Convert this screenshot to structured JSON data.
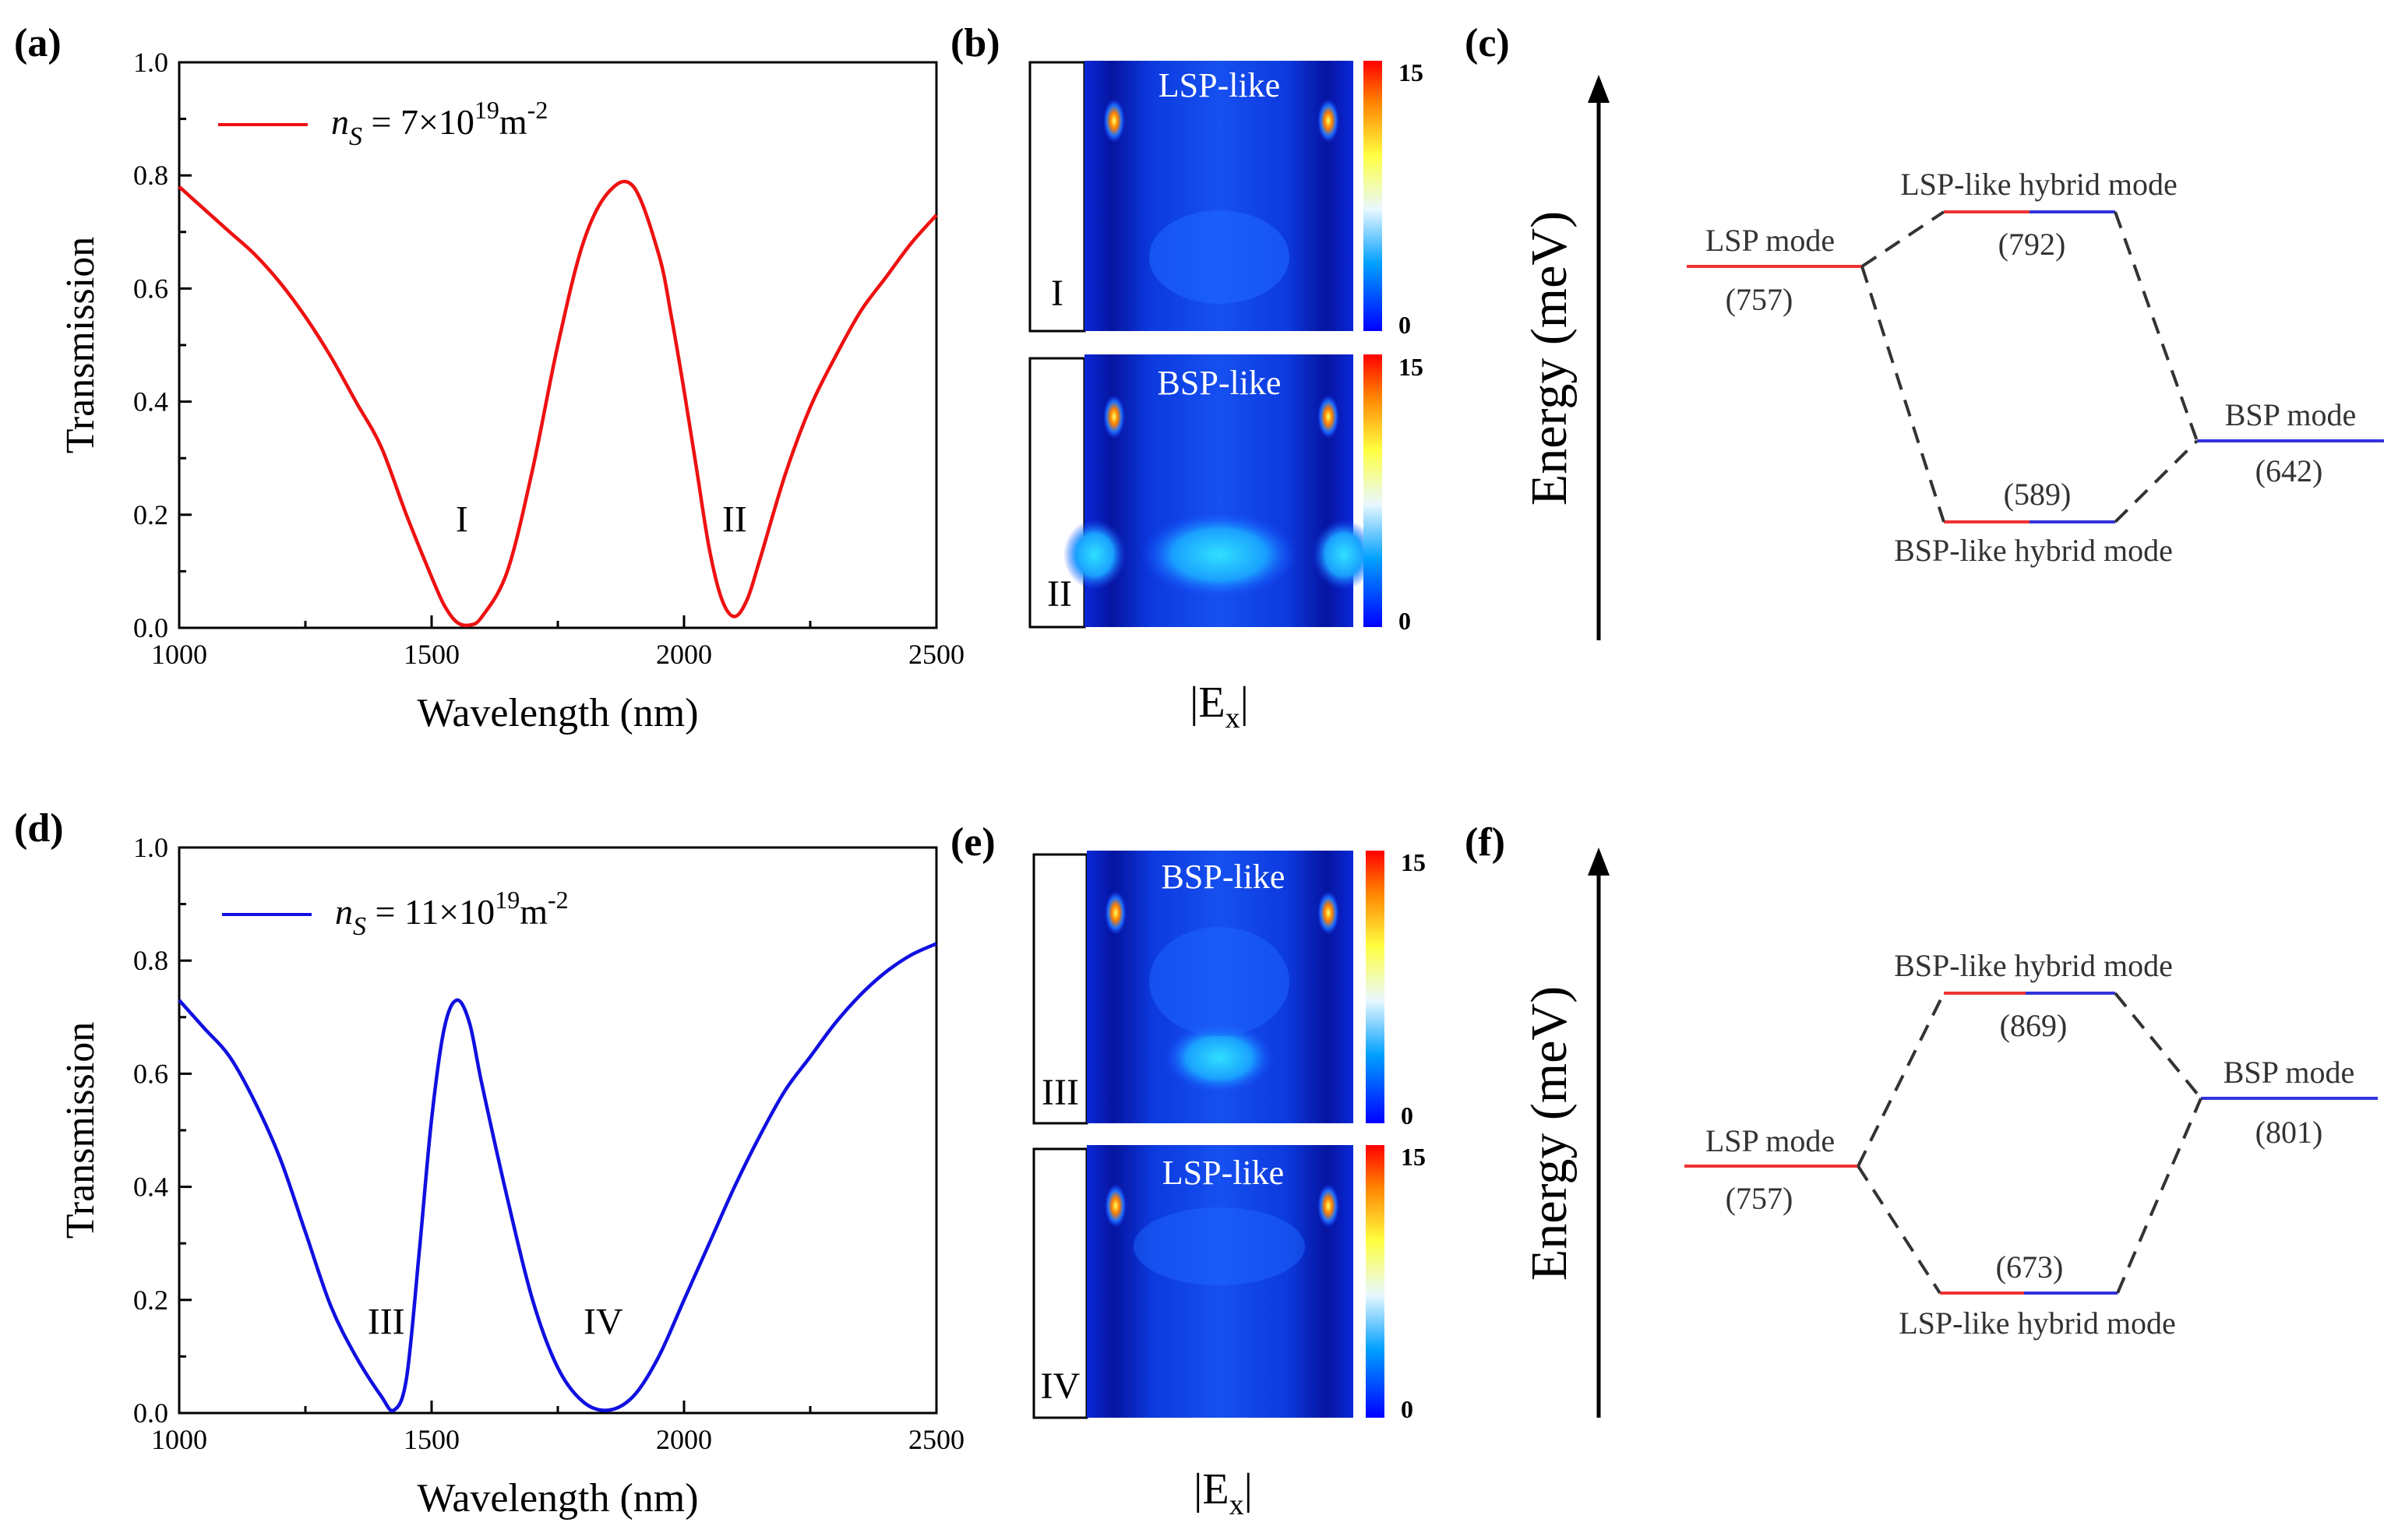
{
  "chart_data": [
    {
      "panel": "(a)",
      "type": "line",
      "xlabel": "Wavelength (nm)",
      "ylabel": "Transmission",
      "xlim": [
        1000,
        2500
      ],
      "ylim": [
        0.0,
        1.0
      ],
      "xticks": [
        "1000",
        "1500",
        "2000",
        "2500"
      ],
      "yticks": [
        "0.0",
        "0.2",
        "0.4",
        "0.6",
        "0.8",
        "1.0"
      ],
      "legend": {
        "symbol": "n",
        "subscript": "S",
        "text": " = 7×10",
        "exp": "19",
        "unit": "m",
        "unit_exp": "-2",
        "placement": "top-left"
      },
      "color": "#ee1111",
      "x": [
        1000,
        1050,
        1100,
        1150,
        1200,
        1250,
        1300,
        1350,
        1400,
        1450,
        1500,
        1525,
        1550,
        1575,
        1600,
        1650,
        1700,
        1750,
        1800,
        1850,
        1900,
        1950,
        1975,
        2000,
        2025,
        2050,
        2075,
        2100,
        2125,
        2150,
        2200,
        2250,
        2300,
        2350,
        2400,
        2450,
        2500
      ],
      "y": [
        0.78,
        0.74,
        0.7,
        0.66,
        0.61,
        0.55,
        0.48,
        0.4,
        0.32,
        0.2,
        0.09,
        0.04,
        0.01,
        0.005,
        0.02,
        0.1,
        0.28,
        0.5,
        0.68,
        0.77,
        0.78,
        0.66,
        0.55,
        0.42,
        0.28,
        0.14,
        0.05,
        0.02,
        0.05,
        0.12,
        0.27,
        0.39,
        0.48,
        0.56,
        0.62,
        0.68,
        0.73
      ],
      "annotations": [
        {
          "text": "I",
          "x": 1560,
          "y": 0.17
        },
        {
          "text": "II",
          "x": 2100,
          "y": 0.17
        }
      ]
    },
    {
      "panel": "(d)",
      "type": "line",
      "xlabel": "Wavelength (nm)",
      "ylabel": "Transmission",
      "xlim": [
        1000,
        2500
      ],
      "ylim": [
        0.0,
        1.0
      ],
      "xticks": [
        "1000",
        "1500",
        "2000",
        "2500"
      ],
      "yticks": [
        "0.0",
        "0.2",
        "0.4",
        "0.6",
        "0.8",
        "1.0"
      ],
      "legend": {
        "symbol": "n",
        "subscript": "S",
        "text": " = 11×10",
        "exp": "19",
        "unit": "m",
        "unit_exp": "-2",
        "placement": "top-left"
      },
      "color": "#1010e0",
      "x": [
        1000,
        1050,
        1100,
        1150,
        1200,
        1250,
        1300,
        1350,
        1400,
        1425,
        1450,
        1475,
        1500,
        1525,
        1550,
        1575,
        1600,
        1650,
        1700,
        1750,
        1800,
        1850,
        1900,
        1950,
        2000,
        2050,
        2100,
        2150,
        2200,
        2250,
        2300,
        2350,
        2400,
        2450,
        2500
      ],
      "y": [
        0.73,
        0.68,
        0.63,
        0.55,
        0.45,
        0.32,
        0.19,
        0.1,
        0.03,
        0.005,
        0.06,
        0.28,
        0.52,
        0.68,
        0.73,
        0.69,
        0.58,
        0.38,
        0.2,
        0.08,
        0.02,
        0.005,
        0.03,
        0.1,
        0.2,
        0.3,
        0.4,
        0.49,
        0.57,
        0.63,
        0.69,
        0.74,
        0.78,
        0.81,
        0.83
      ],
      "annotations": [
        {
          "text": "III",
          "x": 1410,
          "y": 0.14
        },
        {
          "text": "IV",
          "x": 1840,
          "y": 0.14
        }
      ]
    }
  ],
  "panels": {
    "a_label": "(a)",
    "b_label": "(b)",
    "c_label": "(c)",
    "d_label": "(d)",
    "e_label": "(e)",
    "f_label": "(f)"
  },
  "field_maps": {
    "b": {
      "caption": "|E",
      "caption_sub": "x",
      "caption_end": "|",
      "maps": [
        {
          "title": "LSP-like",
          "roman": "I",
          "cbar_max": "15",
          "cbar_min": "0"
        },
        {
          "title": "BSP-like",
          "roman": "II",
          "cbar_max": "15",
          "cbar_min": "0"
        }
      ]
    },
    "e": {
      "caption": "|E",
      "caption_sub": "x",
      "caption_end": "|",
      "maps": [
        {
          "title": "BSP-like",
          "roman": "III",
          "cbar_max": "15",
          "cbar_min": "0"
        },
        {
          "title": "LSP-like",
          "roman": "IV",
          "cbar_max": "15",
          "cbar_min": "0"
        }
      ]
    }
  },
  "energy_diagrams": {
    "c": {
      "axis_label": "Energy (meV)",
      "lsp_label": "LSP mode",
      "lsp_value": "(757)",
      "bsp_label": "BSP mode",
      "bsp_value": "(642)",
      "upper_label": "LSP-like hybrid mode",
      "upper_value": "(792)",
      "lower_label": "BSP-like hybrid mode",
      "lower_value": "(589)"
    },
    "f": {
      "axis_label": "Energy (meV)",
      "lsp_label": "LSP mode",
      "lsp_value": "(757)",
      "bsp_label": "BSP mode",
      "bsp_value": "(801)",
      "upper_label": "BSP-like hybrid mode",
      "upper_value": "(869)",
      "lower_label": "LSP-like hybrid mode",
      "lower_value": "(673)"
    }
  },
  "colors": {
    "lsp": "#ee3333",
    "bsp": "#3333dd",
    "axis": "#000000"
  }
}
